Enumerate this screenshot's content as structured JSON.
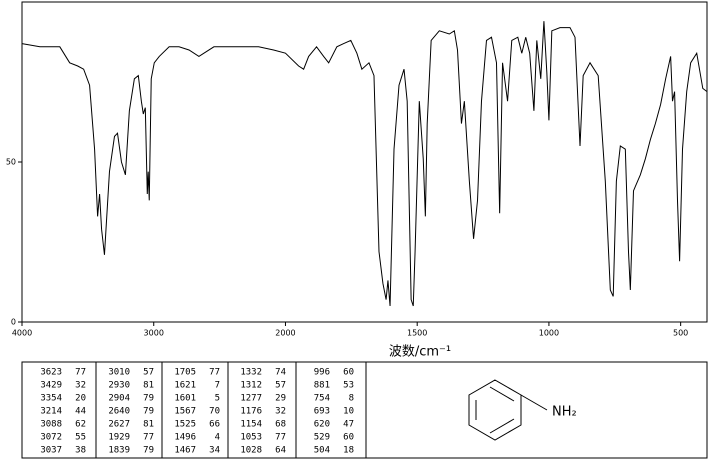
{
  "chart_data": {
    "type": "line",
    "x_label": "波数/cm⁻¹",
    "color": "#000000",
    "xlim": [
      4000,
      400
    ],
    "x_break": 2000,
    "ylim": [
      0,
      100
    ],
    "xticks": [
      4000,
      3000,
      2000,
      1500,
      1000,
      500
    ],
    "yticks": [
      0,
      50
    ],
    "x": [
      4000,
      3864,
      3713,
      3638,
      3577,
      3532,
      3487,
      3449,
      3426,
      3411,
      3396,
      3374,
      3336,
      3298,
      3275,
      3245,
      3215,
      3185,
      3147,
      3117,
      3094,
      3079,
      3064,
      3049,
      3042,
      3034,
      3019,
      2996,
      2958,
      2883,
      2808,
      2732,
      2657,
      2619,
      2543,
      2355,
      2204,
      2090,
      2000,
      1950,
      1931,
      1912,
      1882,
      1855,
      1836,
      1805,
      1779,
      1752,
      1729,
      1710,
      1683,
      1664,
      1645,
      1630,
      1618,
      1611,
      1603,
      1588,
      1569,
      1550,
      1538,
      1523,
      1515,
      1508,
      1492,
      1477,
      1469,
      1462,
      1447,
      1416,
      1378,
      1359,
      1347,
      1332,
      1321,
      1302,
      1286,
      1271,
      1256,
      1237,
      1218,
      1199,
      1187,
      1176,
      1157,
      1141,
      1118,
      1103,
      1088,
      1073,
      1057,
      1046,
      1031,
      1019,
      1008,
      1000,
      989,
      958,
      920,
      901,
      882,
      870,
      844,
      813,
      786,
      767,
      756,
      744,
      729,
      710,
      698,
      691,
      679,
      653,
      634,
      615,
      596,
      576,
      557,
      538,
      531,
      523,
      512,
      504,
      493,
      477,
      462,
      439,
      416,
      400
    ],
    "values": [
      87,
      86,
      86,
      81,
      80,
      79,
      74,
      54,
      33,
      40,
      29,
      21,
      47,
      58,
      59,
      50,
      46,
      66,
      76,
      77,
      69,
      65,
      67,
      40,
      47,
      38,
      76,
      81,
      83,
      86,
      86,
      85,
      83,
      84,
      86,
      86,
      86,
      85,
      84,
      80,
      79,
      83,
      86,
      83,
      81,
      86,
      87,
      88,
      84,
      79,
      81,
      77,
      22,
      12,
      7,
      13,
      5,
      54,
      74,
      79,
      69,
      7,
      5,
      22,
      69,
      51,
      33,
      62,
      88,
      91,
      90,
      91,
      85,
      62,
      69,
      44,
      26,
      38,
      69,
      88,
      89,
      81,
      34,
      81,
      69,
      88,
      89,
      84,
      89,
      84,
      66,
      88,
      76,
      94,
      78,
      63,
      91,
      92,
      92,
      89,
      55,
      77,
      81,
      77,
      44,
      10,
      8,
      44,
      55,
      54,
      22,
      10,
      41,
      46,
      51,
      57,
      62,
      68,
      76,
      83,
      69,
      72,
      38,
      19,
      54,
      72,
      81,
      84,
      73,
      72
    ]
  },
  "peak_table": [
    [
      [
        3623,
        77
      ],
      [
        3429,
        32
      ],
      [
        3354,
        20
      ],
      [
        3214,
        44
      ],
      [
        3088,
        62
      ],
      [
        3072,
        55
      ],
      [
        3037,
        38
      ]
    ],
    [
      [
        3010,
        57
      ],
      [
        2930,
        81
      ],
      [
        2904,
        79
      ],
      [
        2640,
        79
      ],
      [
        2627,
        81
      ],
      [
        1929,
        77
      ],
      [
        1839,
        79
      ]
    ],
    [
      [
        1705,
        77
      ],
      [
        1621,
        7
      ],
      [
        1601,
        5
      ],
      [
        1567,
        70
      ],
      [
        1525,
        66
      ],
      [
        1496,
        4
      ],
      [
        1467,
        34
      ]
    ],
    [
      [
        1332,
        74
      ],
      [
        1312,
        57
      ],
      [
        1277,
        29
      ],
      [
        1176,
        32
      ],
      [
        1154,
        68
      ],
      [
        1053,
        77
      ],
      [
        1028,
        64
      ]
    ],
    [
      [
        996,
        60
      ],
      [
        881,
        53
      ],
      [
        754,
        8
      ],
      [
        693,
        10
      ],
      [
        620,
        47
      ],
      [
        529,
        60
      ],
      [
        504,
        18
      ]
    ]
  ],
  "structure": {
    "label": "NH₂"
  }
}
